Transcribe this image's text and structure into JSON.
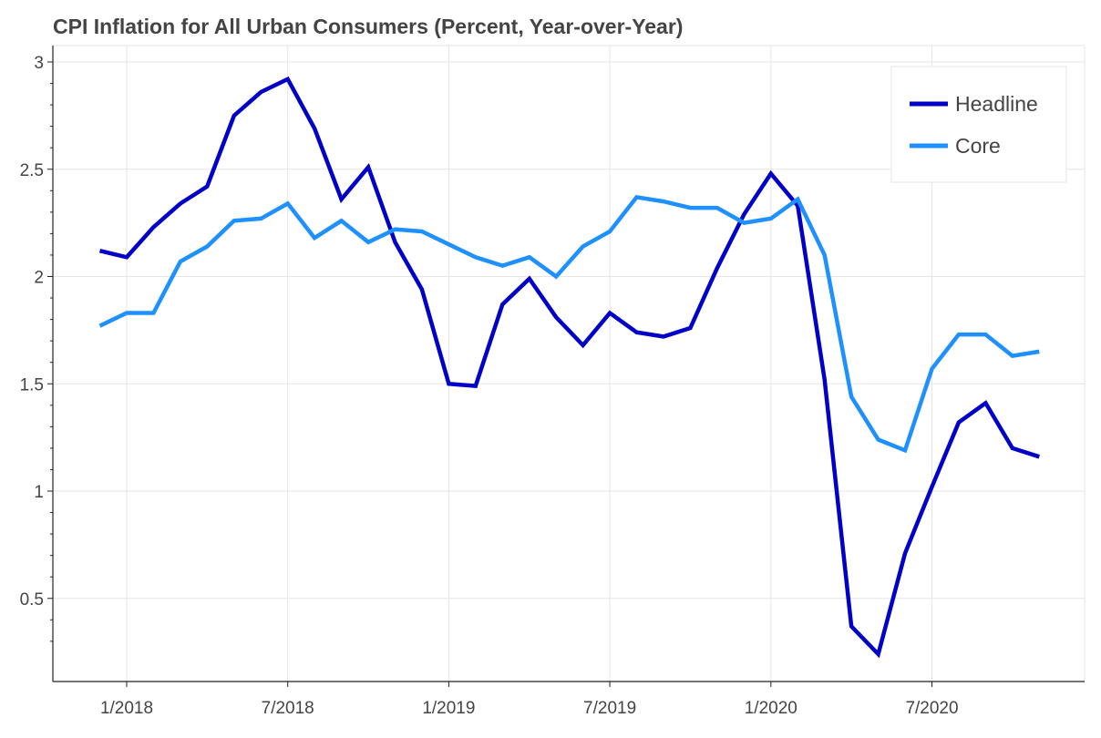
{
  "chart_data": {
    "type": "line",
    "title": "CPI Inflation for All Urban Consumers (Percent, Year-over-Year)",
    "xlabel": "",
    "ylabel": "",
    "x": [
      "2017-12",
      "2018-01",
      "2018-02",
      "2018-03",
      "2018-04",
      "2018-05",
      "2018-06",
      "2018-07",
      "2018-08",
      "2018-09",
      "2018-10",
      "2018-11",
      "2018-12",
      "2019-01",
      "2019-02",
      "2019-03",
      "2019-04",
      "2019-05",
      "2019-06",
      "2019-07",
      "2019-08",
      "2019-09",
      "2019-10",
      "2019-11",
      "2019-12",
      "2020-01",
      "2020-02",
      "2020-03",
      "2020-04",
      "2020-05",
      "2020-06",
      "2020-07",
      "2020-08",
      "2020-09",
      "2020-10",
      "2020-11"
    ],
    "x_ticks": [
      {
        "date": "2018-01",
        "label": "1/2018"
      },
      {
        "date": "2018-07",
        "label": "7/2018"
      },
      {
        "date": "2019-01",
        "label": "1/2019"
      },
      {
        "date": "2019-07",
        "label": "7/2019"
      },
      {
        "date": "2020-01",
        "label": "1/2020"
      },
      {
        "date": "2020-07",
        "label": "7/2020"
      }
    ],
    "y_ticks": [
      0.5,
      1,
      1.5,
      2,
      2.5,
      3
    ],
    "y_tick_labels": [
      "0.5",
      "1",
      "1.5",
      "2",
      "2.5",
      "3"
    ],
    "ylim": [
      0.15,
      3.1
    ],
    "grid": true,
    "legend_position": "top-right",
    "series": [
      {
        "name": "Headline",
        "color": "#0000c8",
        "values": [
          2.12,
          2.09,
          2.23,
          2.34,
          2.42,
          2.75,
          2.86,
          2.92,
          2.69,
          2.36,
          2.51,
          2.16,
          1.94,
          1.5,
          1.49,
          1.87,
          1.99,
          1.81,
          1.68,
          1.83,
          1.74,
          1.72,
          1.76,
          2.04,
          2.29,
          2.48,
          2.33,
          1.52,
          0.37,
          0.24,
          0.71,
          1.02,
          1.32,
          1.41,
          1.2,
          1.16
        ]
      },
      {
        "name": "Core",
        "color": "#1e90ff",
        "values": [
          1.77,
          1.83,
          1.83,
          2.07,
          2.14,
          2.26,
          2.27,
          2.34,
          2.18,
          2.26,
          2.16,
          2.22,
          2.21,
          2.15,
          2.09,
          2.05,
          2.09,
          2.0,
          2.14,
          2.21,
          2.37,
          2.35,
          2.32,
          2.32,
          2.25,
          2.27,
          2.36,
          2.1,
          1.44,
          1.24,
          1.19,
          1.57,
          1.73,
          1.73,
          1.63,
          1.65
        ]
      }
    ]
  }
}
